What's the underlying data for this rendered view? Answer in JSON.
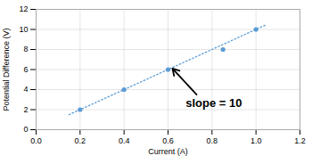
{
  "chart_data": {
    "type": "scatter",
    "xlabel": "Current (A)",
    "ylabel": "Potential Difference (V)",
    "series": [
      {
        "type": "scatter",
        "color": "#5b9bd5",
        "marker": "circle",
        "x": [
          0.2,
          0.4,
          0.6,
          0.85,
          1.0
        ],
        "values": [
          2.0,
          4.0,
          6.0,
          8.0,
          10.0
        ]
      },
      {
        "type": "line",
        "color": "#5b9bd5",
        "line_style": "dotted",
        "x": [
          0.15,
          1.05
        ],
        "values": [
          1.5,
          10.5
        ]
      }
    ],
    "xlim": [
      0,
      1.2
    ],
    "ylim": [
      0,
      12
    ],
    "xticks": [
      {
        "value": 0,
        "label": "0.0"
      },
      0.2,
      0.4,
      0.6,
      0.8,
      {
        "value": 1.0,
        "label": "1.0"
      },
      1.2
    ],
    "yticks": [
      0,
      2,
      4,
      6,
      8,
      10,
      12
    ],
    "grid": true,
    "annotations": [
      {
        "text": "slope = 10",
        "x": 0.68,
        "y": 3.1,
        "arrow": {
          "x1": 0.73,
          "y1": 3.5,
          "x2": 0.62,
          "y2": 6.1
        }
      }
    ]
  }
}
